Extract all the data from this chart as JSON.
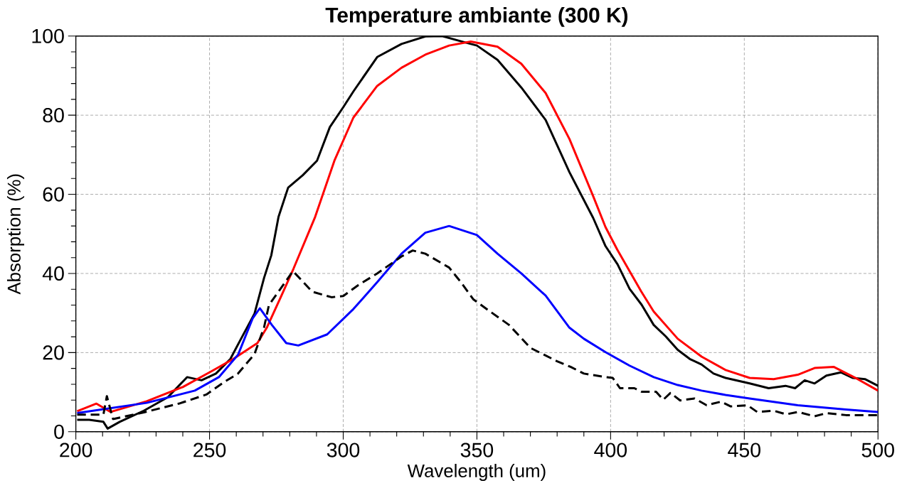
{
  "chart_data": {
    "type": "line",
    "title": "Temperature ambiante (300 K)",
    "xlabel": "Wavelength (um)",
    "ylabel": "Absorption (%)",
    "xlim": [
      200,
      500
    ],
    "ylim": [
      0,
      100
    ],
    "xticks": [
      200,
      250,
      300,
      350,
      400,
      450,
      500
    ],
    "yticks": [
      0,
      20,
      40,
      60,
      80,
      100
    ],
    "grid": true,
    "series": [
      {
        "color": "#000000",
        "line_style": "solid",
        "x": [
          200.5,
          205,
          210.3,
          211.9,
          216.4,
          225.4,
          234.4,
          241.6,
          247,
          252.4,
          257.8,
          261.4,
          266.8,
          270.4,
          273.1,
          275.8,
          279.4,
          284.8,
          290.2,
          295,
          300,
          303.8,
          312.7,
          321.8,
          330.7,
          337,
          345,
          350,
          357.7,
          366.6,
          375.7,
          384.6,
          393.5,
          398.1,
          402.6,
          407.1,
          411.6,
          416.1,
          420.6,
          425.1,
          429.6,
          434,
          438.5,
          443,
          452,
          459.1,
          465.4,
          469,
          472.6,
          476.3,
          480.7,
          486.1,
          490.6,
          495.1,
          500
        ],
        "values": [
          3.0,
          3.0,
          2.5,
          0.8,
          2.5,
          5.3,
          8.7,
          13.8,
          13,
          14.7,
          18.4,
          23,
          29.8,
          38.9,
          44.6,
          54.3,
          61.7,
          64.8,
          68.5,
          77,
          82,
          86,
          94.7,
          98,
          99.9,
          100,
          98.5,
          97.6,
          94,
          87,
          78.8,
          65.6,
          54,
          46.9,
          42.3,
          36.1,
          32.1,
          27,
          24.1,
          20.7,
          18.4,
          17,
          14.7,
          13.6,
          12.2,
          11,
          11.6,
          11,
          13,
          12.2,
          14.2,
          15,
          13.6,
          13.3,
          11.6
        ]
      },
      {
        "color": "#ff0000",
        "line_style": "solid",
        "x": [
          200.5,
          207.7,
          213,
          226.5,
          240,
          250.8,
          258.9,
          267.9,
          271.5,
          276.9,
          281.4,
          289.5,
          296.7,
          303.8,
          312.7,
          321.8,
          330.7,
          339.6,
          347.7,
          357.7,
          366.6,
          375.7,
          384.6,
          393.5,
          398.1,
          402.5,
          407.1,
          411.4,
          416.1,
          425.1,
          434,
          443,
          452,
          461,
          470,
          476.3,
          483.4,
          492.4,
          500
        ],
        "values": [
          5.2,
          7.1,
          5.0,
          7.7,
          11.3,
          15.3,
          18.4,
          22.4,
          26.4,
          34.4,
          41.2,
          54.3,
          68.5,
          79.4,
          87.4,
          92,
          95.3,
          97.6,
          98.6,
          97.3,
          93,
          85.6,
          74,
          59.5,
          51.7,
          46,
          40.6,
          35.5,
          30.4,
          23.5,
          19,
          15.6,
          13.6,
          13.3,
          14.4,
          16.1,
          16.4,
          13.3,
          10.4
        ]
      },
      {
        "color": "#0000ff",
        "line_style": "solid",
        "x": [
          200.5,
          226.5,
          244.5,
          253.5,
          260.7,
          266.1,
          268.8,
          273.3,
          278.7,
          283.2,
          294,
          303.8,
          312.7,
          321.8,
          330.7,
          339.6,
          350,
          357.7,
          366.6,
          375.7,
          384.6,
          390,
          398.1,
          407.1,
          416.1,
          425.1,
          434,
          443,
          452,
          470,
          488,
          500
        ],
        "values": [
          4.7,
          7.3,
          10.4,
          13.8,
          19.5,
          28.6,
          31.2,
          27,
          22.4,
          21.8,
          24.6,
          31,
          37.8,
          45,
          50.3,
          52,
          49.7,
          45,
          40,
          34.4,
          26.3,
          23.5,
          20.1,
          16.7,
          13.8,
          11.8,
          10.4,
          9.3,
          8.4,
          6.7,
          5.6,
          5.0
        ]
      },
      {
        "color": "#000000",
        "line_style": "dashed",
        "x": [
          200.5,
          210.3,
          211.6,
          213.9,
          225.5,
          239,
          248.8,
          256,
          260.5,
          266.8,
          270.4,
          272.2,
          275.8,
          281.2,
          288.4,
          295.6,
          300,
          305.5,
          312.7,
          321.8,
          326,
          330.7,
          339.6,
          344,
          348.6,
          354.9,
          362,
          370,
          375,
          380,
          385,
          390,
          398.1,
          400.8,
          403.5,
          408.9,
          411.6,
          417,
          419.7,
          422.4,
          426,
          431.4,
          435.9,
          441.3,
          444.9,
          451.2,
          454.8,
          461.1,
          465.6,
          470.1,
          476.3,
          480.8,
          488,
          500
        ],
        "values": [
          4.3,
          4.3,
          9,
          3.2,
          4.9,
          7.2,
          9.4,
          12.8,
          14.6,
          19.6,
          26.4,
          32,
          35.4,
          40.6,
          35.4,
          34,
          34.3,
          37,
          40,
          44.3,
          45.8,
          45,
          41.5,
          37.8,
          33.5,
          30.4,
          27,
          21.2,
          19.5,
          17.8,
          16.4,
          14.7,
          13.8,
          13.6,
          11,
          11,
          10.1,
          10.1,
          8.1,
          9.8,
          7.9,
          8.4,
          6.7,
          7.6,
          6.4,
          6.7,
          5.0,
          5.3,
          4.4,
          5.0,
          3.9,
          4.7,
          4.2,
          4.2
        ]
      }
    ]
  }
}
